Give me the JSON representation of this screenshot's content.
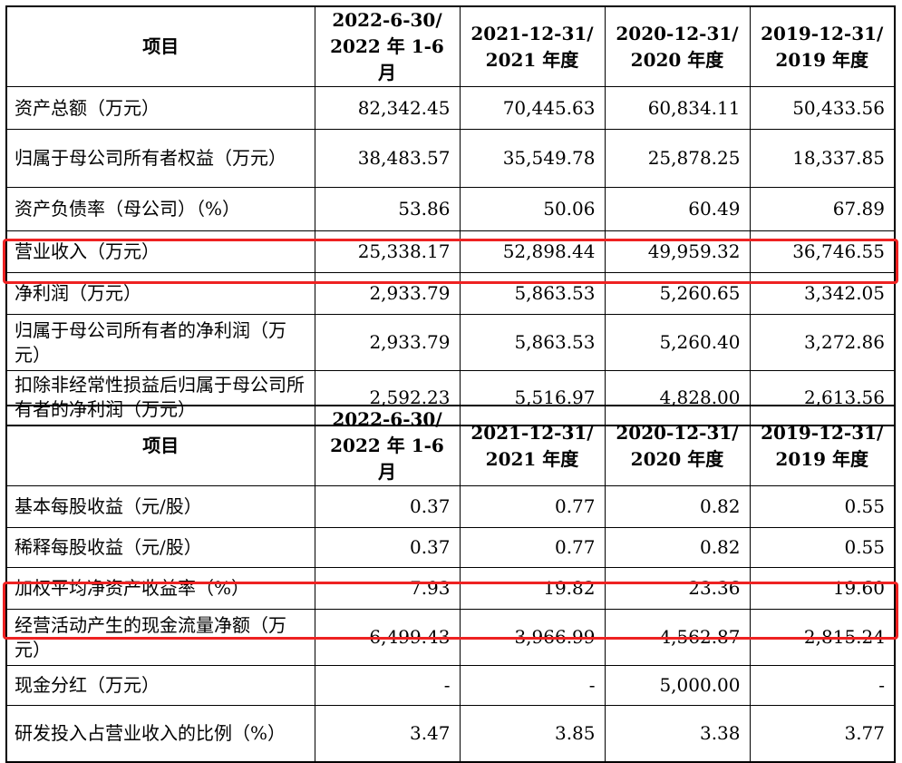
{
  "table1": {
    "headers": [
      "项目",
      "2022-6-30/\n2022 年 1-6 月",
      "2021-12-31/\n2021 年度",
      "2020-12-31/\n2020 年度",
      "2019-12-31/\n2019 年度"
    ],
    "rows": [
      {
        "label": "资产总额（万元）",
        "values": [
          "82,342.45",
          "70,445.63",
          "60,834.11",
          "50,433.56"
        ]
      },
      {
        "label": "归属于母公司所有者权益（万元）",
        "values": [
          "38,483.57",
          "35,549.78",
          "25,878.25",
          "18,337.85"
        ]
      },
      {
        "label": "资产负债率（母公司）（%）",
        "values": [
          "53.86",
          "50.06",
          "60.49",
          "67.89"
        ]
      },
      {
        "label": "营业收入（万元）",
        "values": [
          "25,338.17",
          "52,898.44",
          "49,959.32",
          "36,746.55"
        ]
      },
      {
        "label": "净利润（万元）",
        "values": [
          "2,933.79",
          "5,863.53",
          "5,260.65",
          "3,342.05"
        ]
      },
      {
        "label": "归属于母公司所有者的净利润（万元）",
        "values": [
          "2,933.79",
          "5,863.53",
          "5,260.40",
          "3,272.86"
        ]
      },
      {
        "label": "扣除非经常性损益后归属于母公司所有者的净利润（万元）",
        "values": [
          "2,592.23",
          "5,516.97",
          "4,828.00",
          "2,613.56"
        ]
      }
    ]
  },
  "table2": {
    "headers": [
      "项目",
      "2022-6-30/\n2022 年 1-6 月",
      "2021-12-31/\n2021 年度",
      "2020-12-31/\n2020 年度",
      "2019-12-31/\n2019 年度"
    ],
    "rows": [
      {
        "label": "基本每股收益（元/股）",
        "values": [
          "0.37",
          "0.77",
          "0.82",
          "0.55"
        ]
      },
      {
        "label": "稀释每股收益（元/股）",
        "values": [
          "0.37",
          "0.77",
          "0.82",
          "0.55"
        ]
      },
      {
        "label": "加权平均净资产收益率（%）",
        "values": [
          "7.93",
          "19.82",
          "23.36",
          "19.60"
        ]
      },
      {
        "label": "经营活动产生的现金流量净额（万元）",
        "values": [
          "-6,499.43",
          "3,966.99",
          "4,562.87",
          "-2,815.24"
        ]
      },
      {
        "label": "现金分红（万元）",
        "values": [
          "-",
          "-",
          "5,000.00",
          "-"
        ]
      },
      {
        "label": "研发投入占营业收入的比例（%）",
        "values": [
          "3.47",
          "3.85",
          "3.38",
          "3.77"
        ]
      }
    ]
  },
  "highlight_color": "#ee2222"
}
